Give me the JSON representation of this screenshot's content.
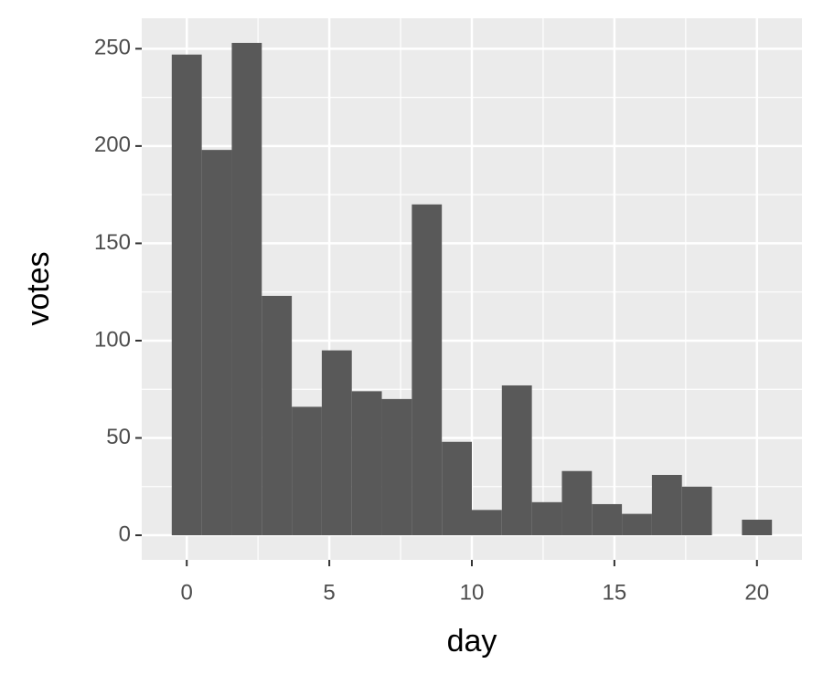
{
  "chart_data": {
    "type": "histogram",
    "xlabel": "day",
    "ylabel": "votes",
    "bins": [
      -0.5263,
      0.5263,
      1.5789,
      2.6316,
      3.6842,
      4.7368,
      5.7895,
      6.8421,
      7.8947,
      8.9474,
      10.0,
      11.0526,
      12.1053,
      13.1579,
      14.2105,
      15.2632,
      16.3158,
      17.3684,
      18.4211,
      19.4737,
      20.5263
    ],
    "values": [
      247,
      198,
      253,
      123,
      66,
      95,
      74,
      70,
      170,
      48,
      13,
      77,
      17,
      33,
      16,
      11,
      31,
      25,
      0,
      8
    ],
    "color": "#595959",
    "xlim": [
      -1.579,
      21.579
    ],
    "xticks": [
      0,
      5,
      10,
      15,
      20
    ],
    "xminor": [
      2.5,
      7.5,
      12.5,
      17.5
    ],
    "ylim": [
      -12.65,
      265.65
    ],
    "yticks": [
      0,
      50,
      100,
      150,
      200,
      250
    ],
    "yminor": [
      25,
      75,
      125,
      175,
      225
    ],
    "grid": true
  }
}
